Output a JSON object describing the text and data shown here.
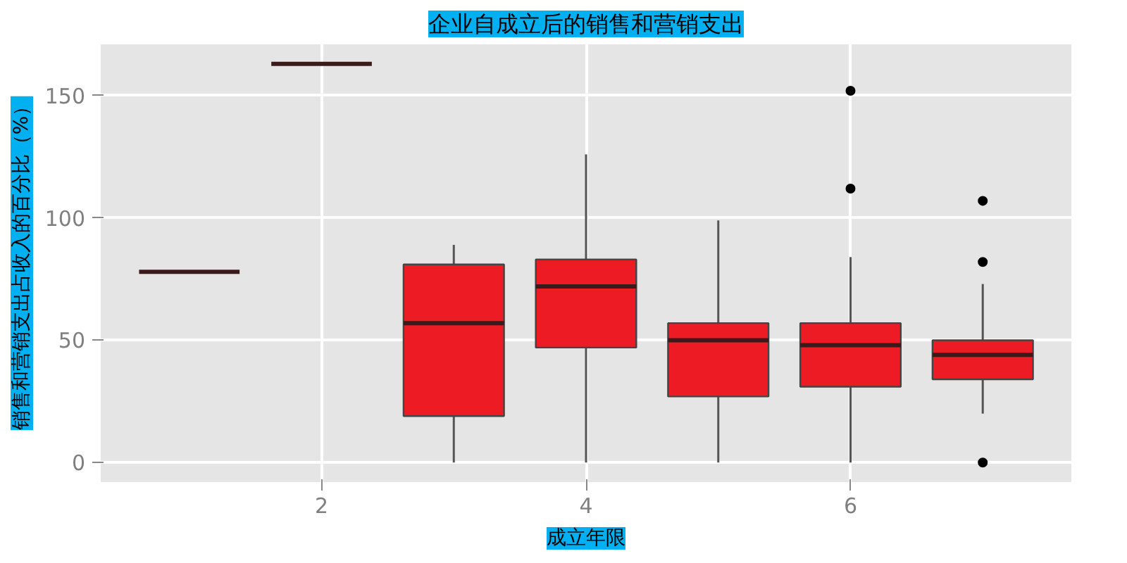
{
  "chart_data": {
    "type": "box",
    "title": "企业自成立后的销售和营销支出",
    "xlabel": "成立年限",
    "ylabel": "销售和营销支出占收入的百分比（%）",
    "x": [
      1,
      2,
      3,
      4,
      5,
      6,
      7
    ],
    "boxes": [
      {
        "low": 78,
        "q1": 78,
        "median": 78,
        "q3": 78,
        "high": 78
      },
      {
        "low": 163,
        "q1": 163,
        "median": 163,
        "q3": 163,
        "high": 163
      },
      {
        "low": 0,
        "q1": 19,
        "median": 57,
        "q3": 81,
        "high": 89
      },
      {
        "low": 0,
        "q1": 47,
        "median": 72,
        "q3": 83,
        "high": 126
      },
      {
        "low": 0,
        "q1": 27,
        "median": 50,
        "q3": 57,
        "high": 99
      },
      {
        "low": 0,
        "q1": 31,
        "median": 48,
        "q3": 57,
        "high": 84,
        "outliers": [
          112,
          152
        ]
      },
      {
        "low": 20,
        "q1": 34,
        "median": 44,
        "q3": 50,
        "high": 73,
        "outliers": [
          0,
          82,
          107
        ]
      }
    ],
    "colors": [
      "#3a1a1a",
      "#3a1a1a",
      "#ed1c24",
      "#ed1c24",
      "#ed1c24",
      "#ed1c24",
      "#ed1c24"
    ],
    "xlim": [
      0.33,
      7.67
    ],
    "xticks": [
      2,
      4,
      6
    ],
    "ylim": [
      -8,
      171
    ],
    "yticks": [
      0,
      50,
      100,
      150
    ],
    "grid": true
  }
}
